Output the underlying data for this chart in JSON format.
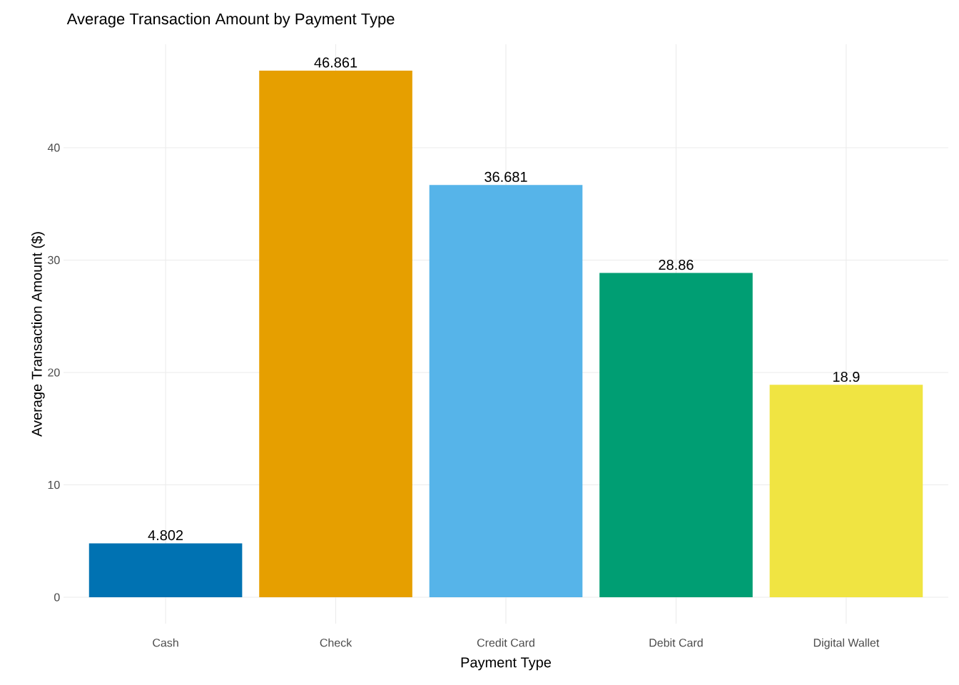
{
  "chart_data": {
    "type": "bar",
    "title": "Average Transaction Amount by Payment Type",
    "xlabel": "Payment Type",
    "ylabel": "Average Transaction Amount ($)",
    "categories": [
      "Cash",
      "Check",
      "Credit Card",
      "Debit Card",
      "Digital Wallet"
    ],
    "values": [
      4.802,
      46.861,
      36.681,
      28.86,
      18.9
    ],
    "colors": [
      "#0072b2",
      "#e69f00",
      "#56b4e9",
      "#009e73",
      "#f0e442"
    ],
    "ylim": [
      -2.343,
      49.204
    ],
    "yticks": [
      0,
      10,
      20,
      30,
      40
    ],
    "grid": true,
    "data_labels": true
  }
}
